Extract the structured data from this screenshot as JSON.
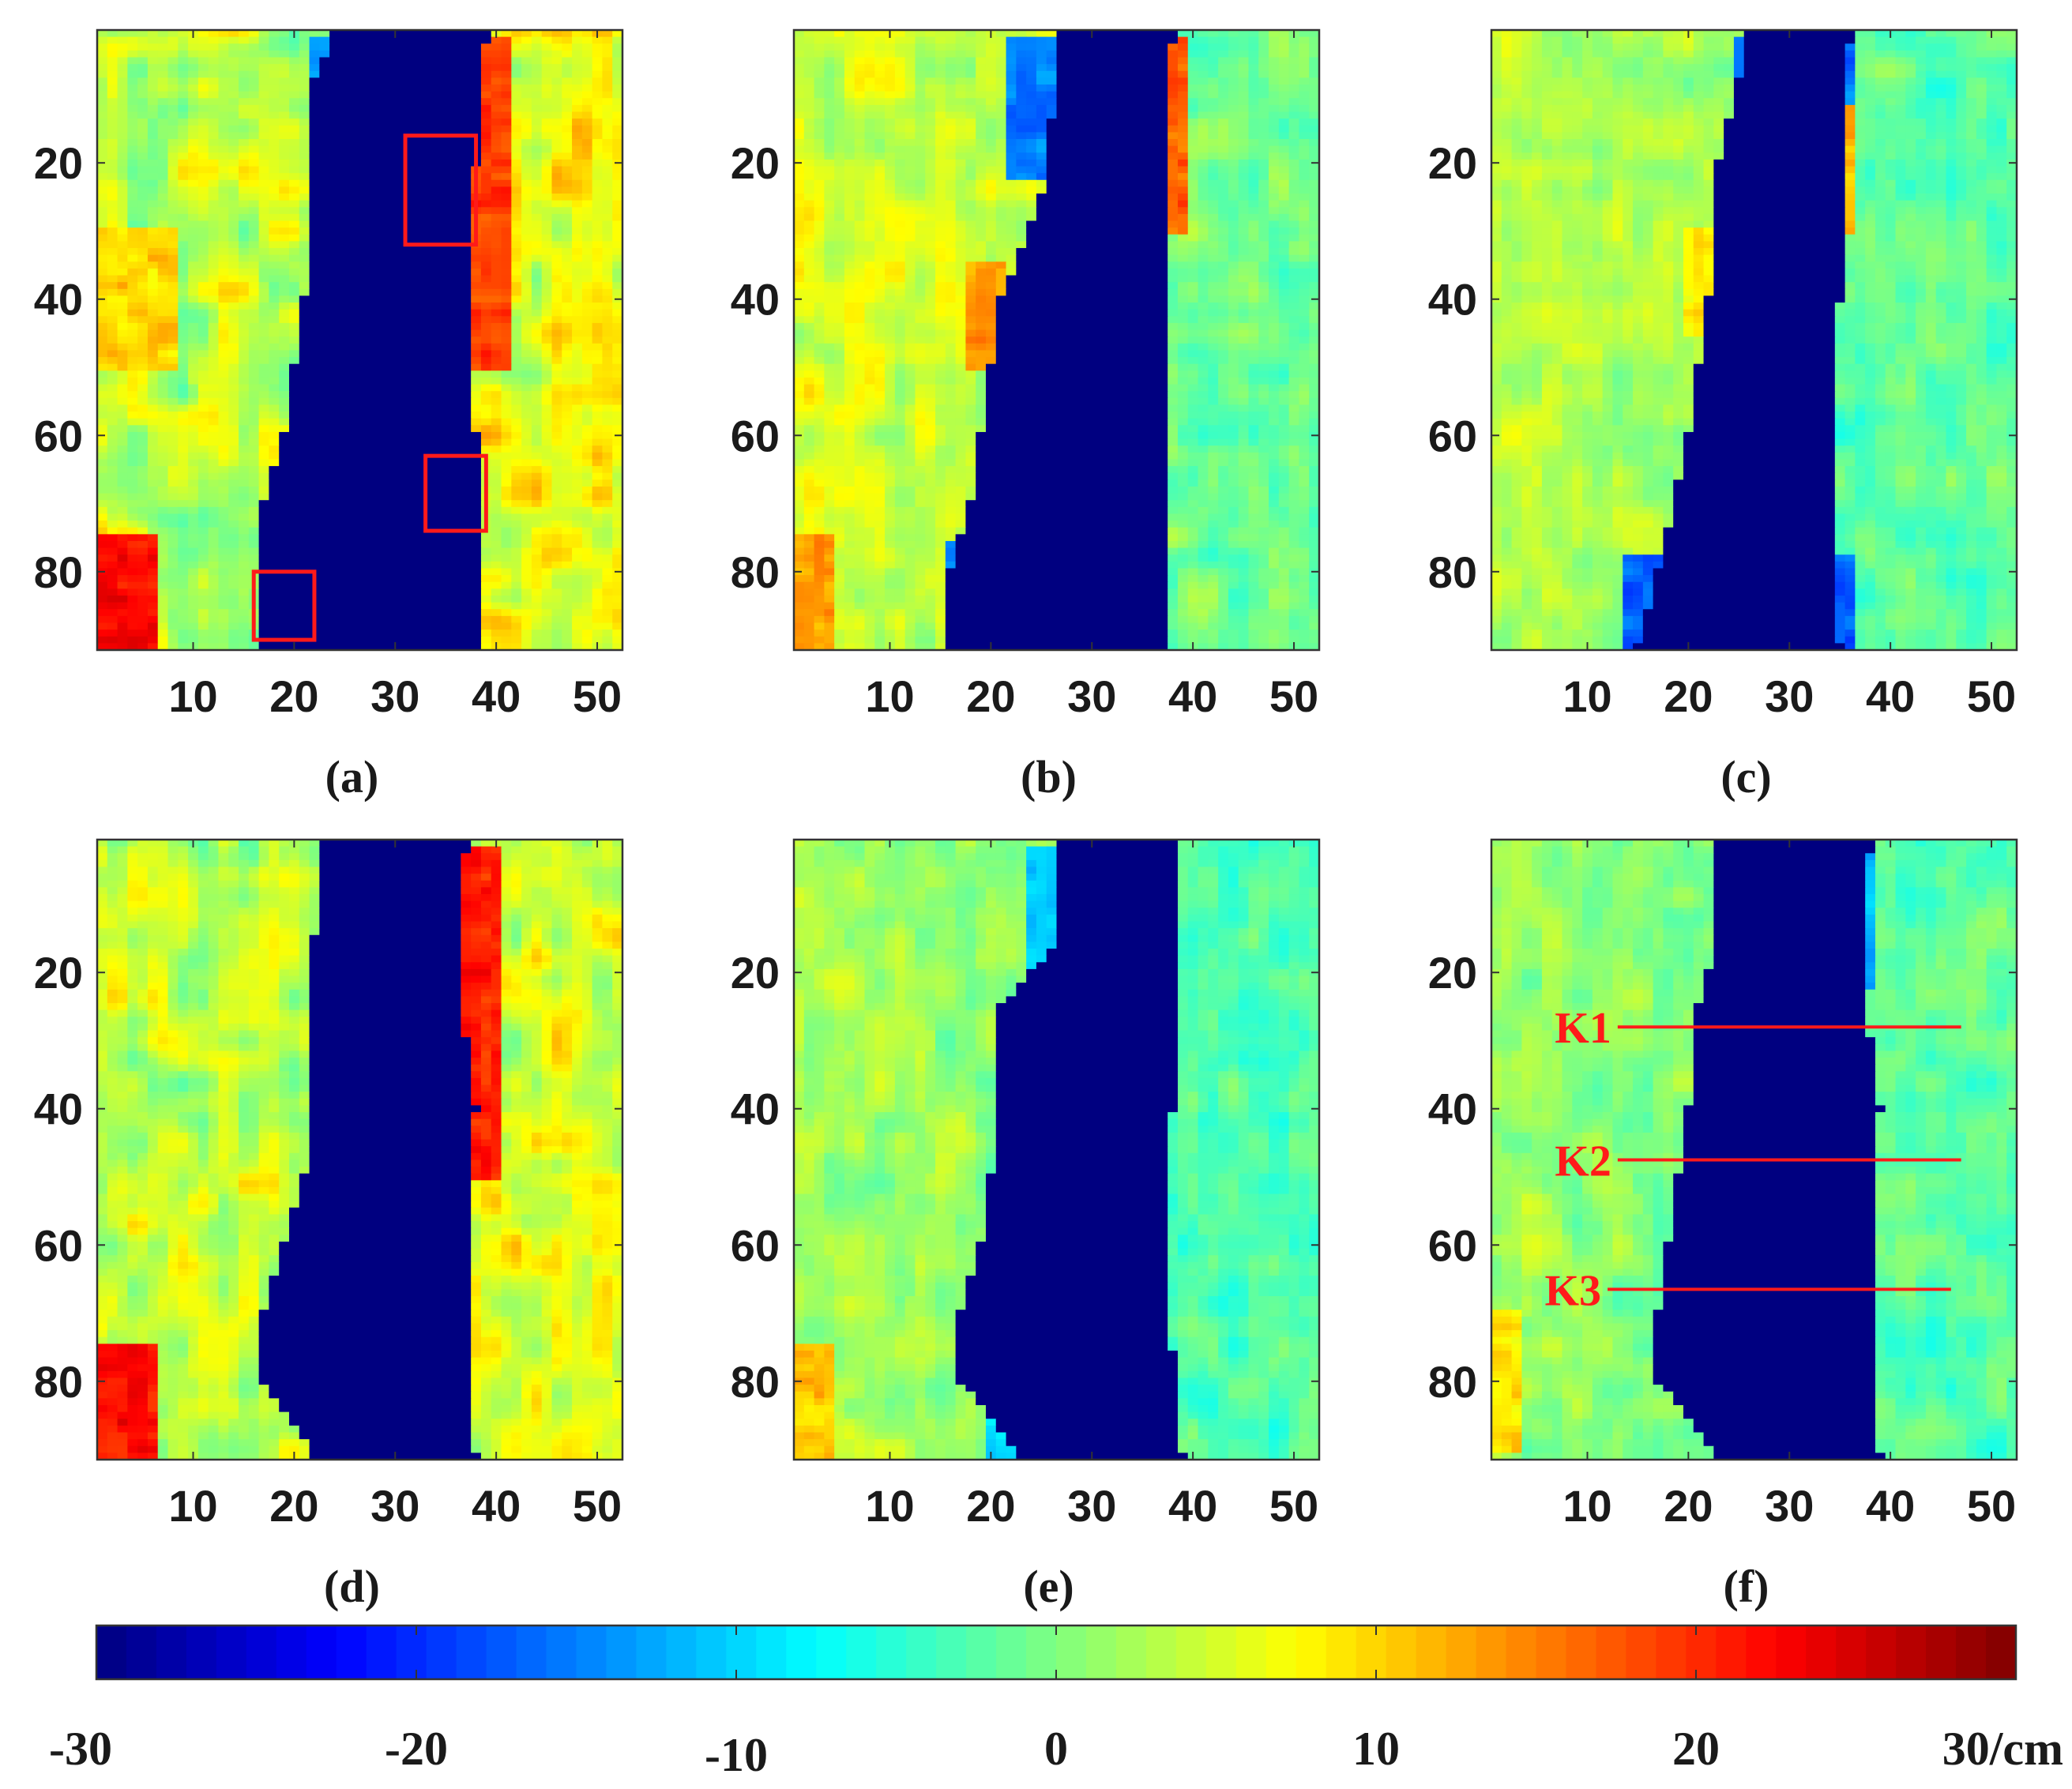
{
  "chart_data": {
    "type": "heatmap",
    "x_range": [
      1,
      52
    ],
    "y_range": [
      1,
      91
    ],
    "y_reversed": true,
    "xticks": [
      "10",
      "20",
      "30",
      "40",
      "50"
    ],
    "yticks": [
      "20",
      "40",
      "60",
      "80"
    ],
    "xtick_values": [
      10,
      20,
      30,
      40,
      50
    ],
    "ytick_values": [
      20,
      40,
      60,
      80
    ],
    "colormap": "jet",
    "panels": [
      {
        "id": "a",
        "caption": "(a)",
        "base_left": 3,
        "base_right": 6,
        "spread": 7,
        "hole": [
          [
            2,
            36
          ],
          [
            20,
            35
          ],
          [
            40,
            33
          ],
          [
            60,
            31
          ],
          [
            70,
            29
          ],
          [
            80,
            26
          ],
          [
            91,
            25
          ]
        ],
        "hole_left": [
          [
            2,
            24
          ],
          [
            8,
            22
          ],
          [
            20,
            22
          ],
          [
            40,
            21
          ],
          [
            60,
            19
          ],
          [
            70,
            17
          ],
          [
            91,
            17
          ]
        ],
        "hole_right": [
          [
            2,
            39
          ],
          [
            20,
            38
          ],
          [
            40,
            37
          ],
          [
            60,
            38
          ],
          [
            91,
            38
          ]
        ],
        "blue_zones": [
          [
            22,
            2,
            37,
            15,
            -14
          ],
          [
            30,
            20,
            38,
            32,
            -9
          ],
          [
            22,
            74,
            36,
            91,
            -11
          ],
          [
            33,
            63,
            38,
            74,
            -6
          ]
        ],
        "warm_zones": [
          [
            1,
            75,
            6,
            91,
            22
          ],
          [
            1,
            30,
            8,
            50,
            10
          ],
          [
            38,
            2,
            41,
            50,
            19
          ]
        ],
        "boxes": [
          [
            31,
            16,
            38,
            32
          ],
          [
            33,
            63,
            39,
            74
          ],
          [
            16,
            80,
            22,
            90
          ]
        ]
      },
      {
        "id": "b",
        "caption": "(b)",
        "base_left": 4,
        "base_right": -1,
        "spread": 5,
        "hole": [
          [
            2,
            37
          ],
          [
            20,
            37
          ],
          [
            40,
            37
          ],
          [
            60,
            36
          ],
          [
            70,
            35
          ],
          [
            91,
            36
          ]
        ],
        "hole_left": [
          [
            2,
            27
          ],
          [
            25,
            25
          ],
          [
            40,
            21
          ],
          [
            60,
            19
          ],
          [
            70,
            18
          ],
          [
            80,
            16
          ],
          [
            91,
            16
          ]
        ],
        "hole_right": [
          [
            2,
            38
          ],
          [
            20,
            37
          ],
          [
            40,
            37
          ],
          [
            60,
            37
          ],
          [
            91,
            37
          ]
        ],
        "blue_zones": [
          [
            22,
            2,
            38,
            22,
            -15
          ],
          [
            16,
            76,
            37,
            91,
            -13
          ]
        ],
        "warm_zones": [
          [
            18,
            35,
            21,
            50,
            14
          ],
          [
            37,
            2,
            39,
            30,
            17
          ],
          [
            1,
            75,
            4,
            91,
            13
          ]
        ],
        "boxes": []
      },
      {
        "id": "c",
        "caption": "(c)",
        "base_left": 2,
        "base_right": -2,
        "spread": 4,
        "hole": [
          [
            2,
            35
          ],
          [
            20,
            36
          ],
          [
            40,
            35
          ],
          [
            60,
            35
          ],
          [
            91,
            36
          ]
        ],
        "hole_left": [
          [
            2,
            26
          ],
          [
            20,
            23
          ],
          [
            40,
            22
          ],
          [
            60,
            20
          ],
          [
            80,
            17
          ],
          [
            91,
            15
          ]
        ],
        "hole_right": [
          [
            2,
            36
          ],
          [
            20,
            35
          ],
          [
            40,
            35
          ],
          [
            60,
            34
          ],
          [
            91,
            35
          ]
        ],
        "blue_zones": [
          [
            25,
            2,
            36,
            22,
            -16
          ],
          [
            14,
            78,
            36,
            91,
            -17
          ]
        ],
        "warm_zones": [
          [
            34,
            12,
            36,
            30,
            12
          ],
          [
            20,
            30,
            24,
            45,
            8
          ]
        ],
        "boxes": []
      },
      {
        "id": "d",
        "caption": "(d)",
        "base_left": 3,
        "base_right": 5,
        "spread": 7,
        "hole": [
          [
            2,
            37
          ],
          [
            20,
            36
          ],
          [
            40,
            37
          ],
          [
            60,
            36
          ],
          [
            70,
            35
          ],
          [
            80,
            36
          ],
          [
            91,
            37
          ]
        ],
        "hole_left": [
          [
            2,
            23
          ],
          [
            15,
            22
          ],
          [
            30,
            22
          ],
          [
            50,
            21
          ],
          [
            60,
            19
          ],
          [
            70,
            17
          ],
          [
            80,
            17
          ],
          [
            91,
            22
          ]
        ],
        "hole_right": [
          [
            2,
            37
          ],
          [
            20,
            36
          ],
          [
            40,
            38
          ],
          [
            60,
            37
          ],
          [
            91,
            38
          ]
        ],
        "blue_zones": [
          [
            23,
            2,
            38,
            22,
            -10
          ],
          [
            22,
            80,
            32,
            91,
            -10
          ]
        ],
        "warm_zones": [
          [
            1,
            75,
            6,
            91,
            22
          ],
          [
            37,
            2,
            40,
            50,
            21
          ],
          [
            34,
            68,
            36,
            76,
            20
          ]
        ],
        "boxes": []
      },
      {
        "id": "e",
        "caption": "(e)",
        "base_left": 1,
        "base_right": -3,
        "spread": 4,
        "hole": [
          [
            2,
            38
          ],
          [
            20,
            37
          ],
          [
            40,
            38
          ],
          [
            60,
            38
          ],
          [
            91,
            39
          ]
        ],
        "hole_left": [
          [
            2,
            27
          ],
          [
            15,
            27
          ],
          [
            25,
            21
          ],
          [
            40,
            21
          ],
          [
            60,
            19
          ],
          [
            70,
            17
          ],
          [
            80,
            17
          ],
          [
            91,
            23
          ]
        ],
        "hole_right": [
          [
            2,
            38
          ],
          [
            20,
            38
          ],
          [
            40,
            38
          ],
          [
            60,
            37
          ],
          [
            91,
            39
          ]
        ],
        "blue_zones": [
          [
            24,
            2,
            37,
            22,
            -11
          ],
          [
            30,
            66,
            36,
            75,
            -9
          ],
          [
            20,
            80,
            29,
            91,
            -9
          ]
        ],
        "warm_zones": [
          [
            35,
            20,
            38,
            32,
            15
          ],
          [
            1,
            75,
            4,
            91,
            11
          ]
        ],
        "boxes": []
      },
      {
        "id": "f",
        "caption": "(f)",
        "base_left": 0,
        "base_right": -2,
        "spread": 4,
        "hole": [
          [
            2,
            38
          ],
          [
            20,
            38
          ],
          [
            40,
            38
          ],
          [
            60,
            38
          ],
          [
            91,
            38
          ]
        ],
        "hole_left": [
          [
            2,
            23
          ],
          [
            15,
            23
          ],
          [
            25,
            21
          ],
          [
            40,
            20
          ],
          [
            60,
            18
          ],
          [
            70,
            17
          ],
          [
            80,
            17
          ],
          [
            91,
            23
          ]
        ],
        "hole_right": [
          [
            2,
            38
          ],
          [
            20,
            37
          ],
          [
            40,
            39
          ],
          [
            60,
            38
          ],
          [
            91,
            39
          ]
        ],
        "blue_zones": [
          [
            23,
            2,
            38,
            22,
            -11
          ],
          [
            30,
            62,
            38,
            74,
            -9
          ]
        ],
        "warm_zones": [
          [
            33,
            2,
            36,
            30,
            14
          ],
          [
            27,
            82,
            29,
            88,
            17
          ],
          [
            1,
            70,
            3,
            90,
            9
          ]
        ],
        "boxes": []
      }
    ],
    "profiles": [
      {
        "label": "K1",
        "x1": 13,
        "x2": 47,
        "y": 28
      },
      {
        "label": "K2",
        "x1": 13,
        "x2": 47,
        "y": 47.5
      },
      {
        "label": "K3",
        "x1": 12,
        "x2": 46,
        "y": 66.5
      }
    ],
    "colorbar": {
      "min": -30,
      "max": 30,
      "ticks": [
        -30,
        -20,
        -10,
        0,
        10,
        20,
        30
      ],
      "tick_labels": [
        "-30",
        "-20",
        "-10",
        "0",
        "10",
        "20",
        "30/cm"
      ],
      "unit": "cm"
    }
  }
}
